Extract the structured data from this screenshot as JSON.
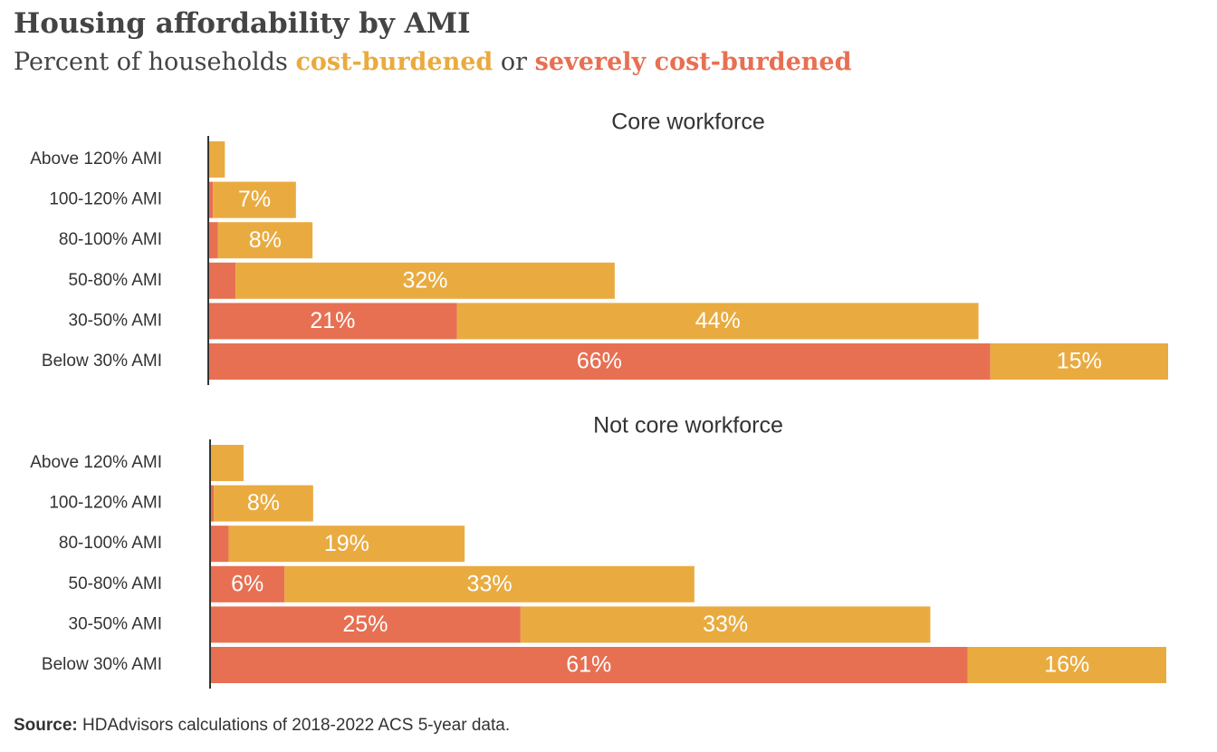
{
  "header": {
    "title": "Housing affordability by AMI",
    "subtitle_prefix": "Percent of households",
    "subtitle_cost": "cost-burdened",
    "subtitle_or": "or",
    "subtitle_severe": "severely cost-burdened"
  },
  "colors": {
    "cost_burdened": "#E9AB40",
    "severely_cost_burdened": "#E77052",
    "axis": "#333333"
  },
  "chart_data": [
    {
      "type": "bar",
      "orientation": "horizontal",
      "stacked": true,
      "title": "Core workforce",
      "categories": [
        "Above 120% AMI",
        "100-120% AMI",
        "80-100% AMI",
        "50-80% AMI",
        "30-50% AMI",
        "Below 30% AMI"
      ],
      "series": [
        {
          "name": "severely cost-burdened",
          "values": [
            0,
            0.4,
            0.8,
            2.3,
            21,
            66
          ],
          "labels": [
            "",
            "",
            "",
            "",
            "21%",
            "66%"
          ]
        },
        {
          "name": "cost-burdened",
          "values": [
            1.4,
            7,
            8,
            32,
            44,
            15
          ],
          "labels": [
            "",
            "7%",
            "8%",
            "32%",
            "44%",
            "15%"
          ]
        }
      ],
      "xlim": [
        0,
        81
      ]
    },
    {
      "type": "bar",
      "orientation": "horizontal",
      "stacked": true,
      "title": "Not core workforce",
      "categories": [
        "Above 120% AMI",
        "100-120% AMI",
        "80-100% AMI",
        "50-80% AMI",
        "30-50% AMI",
        "Below 30% AMI"
      ],
      "series": [
        {
          "name": "severely cost-burdened",
          "values": [
            0,
            0.3,
            1.5,
            6,
            25,
            61
          ],
          "labels": [
            "",
            "",
            "",
            "6%",
            "25%",
            "61%"
          ]
        },
        {
          "name": "cost-burdened",
          "values": [
            2.7,
            8,
            19,
            33,
            33,
            16
          ],
          "labels": [
            "",
            "8%",
            "19%",
            "33%",
            "33%",
            "16%"
          ]
        }
      ],
      "xlim": [
        0,
        77
      ]
    }
  ],
  "source": {
    "label": "Source:",
    "text": "HDAdvisors  calculations of 2018-2022  ACS 5-year  data."
  }
}
